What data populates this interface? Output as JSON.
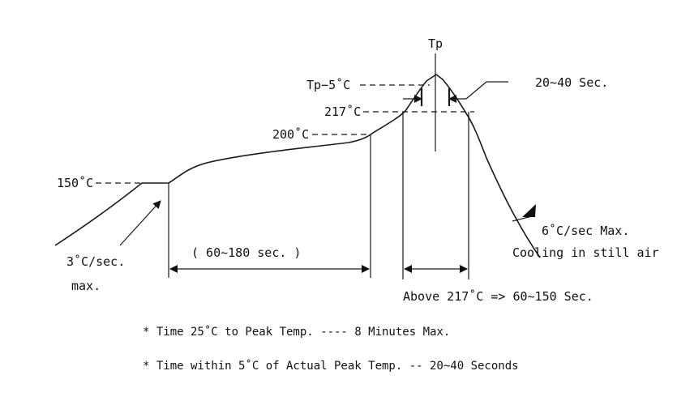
{
  "labels": {
    "tp": "Tp",
    "tp_minus_5": "Tp−5˚C",
    "t217": "217˚C",
    "t200": "200˚C",
    "t150": "150˚C",
    "dwell_20_40": "20~40 Sec.",
    "ramp_up_line1": "3˚C/sec.",
    "ramp_up_line2": "max.",
    "soak_time": "( 60~180 sec. )",
    "cool_line1": "6˚C/sec Max.",
    "cool_line2": "Cooling in still air",
    "above_217": "Above 217˚C => 60~150 Sec."
  },
  "notes": [
    "* Time 25˚C to Peak Temp. ---- 8 Minutes Max.",
    "* Time within 5˚C of Actual Peak Temp. -- 20~40 Seconds"
  ]
}
